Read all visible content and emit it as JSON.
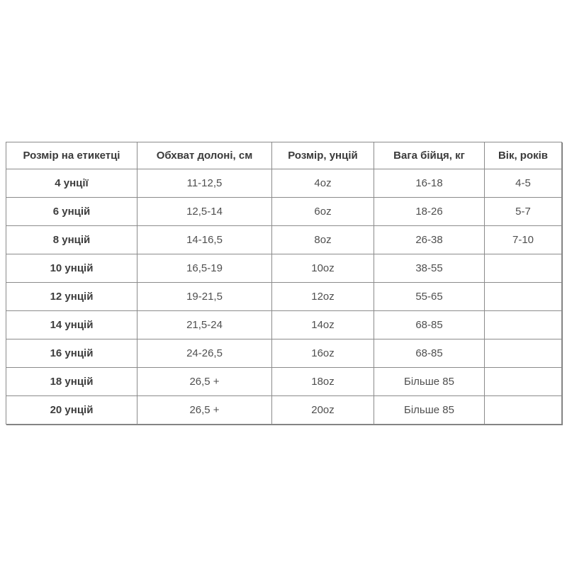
{
  "table": {
    "columns": [
      "Розмір на етикетці",
      "Обхват долоні, см",
      "Розмір, унцій",
      "Вага бійця, кг",
      "Вік, років"
    ],
    "rows": [
      [
        "4 унції",
        "11-12,5",
        "4oz",
        "16-18",
        "4-5"
      ],
      [
        "6 унцій",
        "12,5-14",
        "6oz",
        "18-26",
        "5-7"
      ],
      [
        "8 унцій",
        "14-16,5",
        "8oz",
        "26-38",
        "7-10"
      ],
      [
        "10 унцій",
        "16,5-19",
        "10oz",
        "38-55",
        ""
      ],
      [
        "12 унцій",
        "19-21,5",
        "12oz",
        "55-65",
        ""
      ],
      [
        "14 унцій",
        "21,5-24",
        "14oz",
        "68-85",
        ""
      ],
      [
        "16 унцій",
        "24-26,5",
        "16oz",
        "68-85",
        ""
      ],
      [
        "18 унцій",
        "26,5 +",
        "18oz",
        "Більше 85",
        ""
      ],
      [
        "20 унцій",
        "26,5 +",
        "20oz",
        "Більше 85",
        ""
      ]
    ]
  },
  "chart_data": {
    "type": "table",
    "title": "",
    "columns": [
      "Розмір на етикетці",
      "Обхват долоні, см",
      "Розмір, унцій",
      "Вага бійця, кг",
      "Вік, років"
    ],
    "rows": [
      [
        "4 унції",
        "11-12,5",
        "4oz",
        "16-18",
        "4-5"
      ],
      [
        "6 унцій",
        "12,5-14",
        "6oz",
        "18-26",
        "5-7"
      ],
      [
        "8 унцій",
        "14-16,5",
        "8oz",
        "26-38",
        "7-10"
      ],
      [
        "10 унцій",
        "16,5-19",
        "10oz",
        "38-55",
        ""
      ],
      [
        "12 унцій",
        "19-21,5",
        "12oz",
        "55-65",
        ""
      ],
      [
        "14 унцій",
        "21,5-24",
        "14oz",
        "68-85",
        ""
      ],
      [
        "16 унцій",
        "24-26,5",
        "16oz",
        "68-85",
        ""
      ],
      [
        "18 унцій",
        "26,5 +",
        "18oz",
        "Більше 85",
        ""
      ],
      [
        "20 унцій",
        "26,5 +",
        "20oz",
        "Більше 85",
        ""
      ]
    ]
  },
  "colors": {
    "background": "#ffffff",
    "border": "#8b8b8b",
    "header_text": "#3a3a3a",
    "cell_text": "#4f4f4f"
  }
}
